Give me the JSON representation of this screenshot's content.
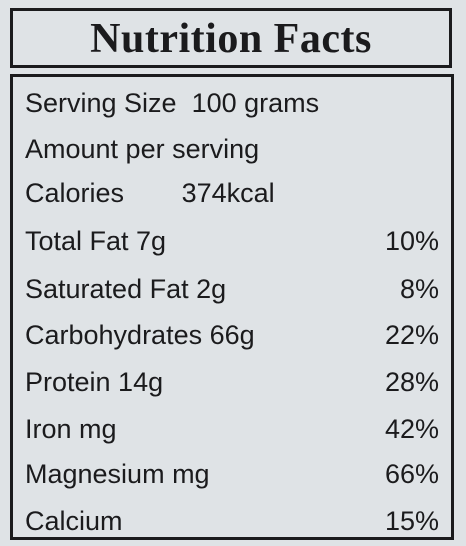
{
  "header": {
    "title": "Nutrition Facts"
  },
  "serving": {
    "label": "Serving Size",
    "value": "100 grams"
  },
  "amount": "Amount per serving",
  "calories": {
    "label": "Calories",
    "value": "374kcal"
  },
  "nutrients": [
    {
      "name": "Total Fat 7g",
      "percent": "10%"
    },
    {
      "name": "Saturated Fat 2g",
      "percent": "8%"
    },
    {
      "name": "Carbohydrates 66g",
      "percent": "22%"
    },
    {
      "name": "Protein 14g",
      "percent": "28%"
    },
    {
      "name": "Iron mg",
      "percent": "42%"
    },
    {
      "name": "Magnesium mg",
      "percent": "66%"
    },
    {
      "name": "Calcium",
      "percent": "15%"
    }
  ]
}
